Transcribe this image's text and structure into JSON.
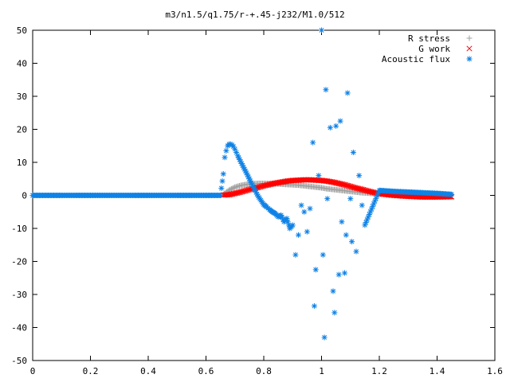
{
  "chart_data": {
    "type": "scatter",
    "title": "m3/n1.5/q1.75/r-+.45-j232/M1.0/512",
    "xlim": [
      0,
      1.6
    ],
    "ylim": [
      -50,
      50
    ],
    "xticks": [
      "0",
      "0.2",
      "0.4",
      "0.6",
      "0.8",
      "1",
      "1.2",
      "1.4",
      "1.6"
    ],
    "yticks": [
      "-50",
      "-40",
      "-30",
      "-20",
      "-10",
      "0",
      "10",
      "20",
      "30",
      "40",
      "50"
    ],
    "grid": false,
    "legend_position": "top-right",
    "series": [
      {
        "name": "R stress",
        "marker": "plus",
        "color": "#a0a0a0",
        "x": [
          0.66,
          0.68,
          0.7,
          0.72,
          0.74,
          0.76,
          0.78,
          0.8,
          0.82,
          0.84,
          0.86,
          0.88,
          0.9,
          0.92,
          0.94,
          0.96,
          0.98,
          1.0,
          1.02,
          1.04,
          1.06,
          1.08,
          1.1,
          1.12,
          1.14,
          1.16,
          1.18,
          1.2,
          1.25,
          1.3,
          1.35,
          1.4,
          1.45
        ],
        "y": [
          0.3,
          1.6,
          2.5,
          3.0,
          3.3,
          3.5,
          3.6,
          3.6,
          3.6,
          3.5,
          3.4,
          3.3,
          3.2,
          3.1,
          2.9,
          2.7,
          2.5,
          2.3,
          2.0,
          1.8,
          1.6,
          1.4,
          1.2,
          1.0,
          0.8,
          0.7,
          0.6,
          0.5,
          0.4,
          0.3,
          0.2,
          0.2,
          0.1
        ]
      },
      {
        "name": "G work",
        "marker": "cross",
        "color": "#ff0000",
        "x": [
          0.66,
          0.68,
          0.7,
          0.72,
          0.74,
          0.76,
          0.78,
          0.8,
          0.82,
          0.84,
          0.86,
          0.88,
          0.9,
          0.92,
          0.94,
          0.96,
          0.98,
          1.0,
          1.02,
          1.04,
          1.06,
          1.08,
          1.1,
          1.12,
          1.14,
          1.16,
          1.18,
          1.2,
          1.25,
          1.3,
          1.35,
          1.4,
          1.45
        ],
        "y": [
          0.1,
          0.2,
          0.6,
          1.0,
          1.5,
          2.0,
          2.4,
          2.9,
          3.3,
          3.7,
          4.0,
          4.3,
          4.5,
          4.6,
          4.7,
          4.7,
          4.6,
          4.5,
          4.3,
          4.0,
          3.6,
          3.2,
          2.7,
          2.2,
          1.8,
          1.3,
          0.9,
          0.5,
          0.0,
          -0.3,
          -0.5,
          -0.5,
          -0.4
        ]
      },
      {
        "name": "Acoustic flux",
        "marker": "star",
        "color": "#0f82e6",
        "x": [
          0.0,
          0.05,
          0.1,
          0.15,
          0.2,
          0.25,
          0.3,
          0.35,
          0.4,
          0.45,
          0.5,
          0.55,
          0.6,
          0.65,
          0.66,
          0.665,
          0.67,
          0.675,
          0.68,
          0.685,
          0.69,
          0.695,
          0.7,
          0.705,
          0.71,
          0.72,
          0.73,
          0.74,
          0.75,
          0.76,
          0.77,
          0.78,
          0.79,
          0.8,
          0.81,
          0.82,
          0.83,
          0.84,
          0.85,
          0.86,
          0.87,
          0.88,
          0.89,
          0.9,
          0.91,
          0.92,
          0.93,
          0.94,
          0.95,
          0.96,
          0.97,
          0.975,
          0.98,
          0.99,
          1.0,
          1.005,
          1.01,
          1.015,
          1.02,
          1.03,
          1.04,
          1.045,
          1.05,
          1.06,
          1.065,
          1.07,
          1.08,
          1.085,
          1.09,
          1.1,
          1.105,
          1.11,
          1.12,
          1.13,
          1.14,
          1.15,
          1.2,
          1.25,
          1.3,
          1.35,
          1.4,
          1.45
        ],
        "y": [
          0,
          0,
          0,
          0,
          0,
          0,
          0,
          0,
          0,
          0,
          0,
          0,
          0,
          0,
          6.5,
          11.5,
          13.5,
          15,
          15.5,
          15.5,
          15.3,
          14.8,
          14,
          13,
          12,
          10.2,
          8.5,
          6.8,
          5,
          3.2,
          1.5,
          -0.2,
          -1.5,
          -2.8,
          -3.5,
          -4.3,
          -5,
          -5.5,
          -6.5,
          -6,
          -8,
          -7,
          -10,
          -9,
          -18,
          -12,
          -3,
          -5,
          -11,
          -4,
          16,
          -33.5,
          -22.5,
          6,
          50,
          -18,
          -43,
          32,
          -1,
          20.5,
          -29,
          -35.5,
          21,
          -24,
          22.5,
          -8,
          -23.5,
          -12,
          31,
          -1,
          -14,
          13,
          -17,
          6,
          -3,
          -9,
          1.5,
          1.2,
          1,
          0.8,
          0.6,
          0.3
        ]
      }
    ]
  }
}
